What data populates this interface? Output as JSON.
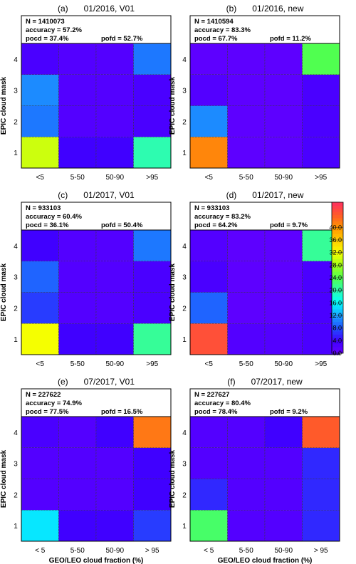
{
  "chart_data": [
    {
      "type": "heatmap",
      "panel_label": "(a)",
      "title": "01/2016, V01",
      "stats": {
        "n": "N = 1410073",
        "accuracy": "accuracy = 57.2%",
        "pocd": "pocd = 37.4%",
        "pofd": "pofd = 52.7%"
      },
      "x_categories": [
        "<5",
        "5-50",
        "50-90",
        ">95"
      ],
      "y_categories": [
        "1",
        "2",
        "3",
        "4"
      ],
      "values": [
        [
          30,
          4,
          4,
          20
        ],
        [
          10,
          2,
          2,
          3
        ],
        [
          11,
          2,
          2,
          3
        ],
        [
          3,
          2,
          2,
          10
        ]
      ],
      "ylabel": "EPIC cloud mask",
      "xlabel": ""
    },
    {
      "type": "heatmap",
      "panel_label": "(b)",
      "title": "01/2016, new",
      "stats": {
        "n": "N = 1410594",
        "accuracy": "accuracy = 83.3%",
        "pocd": "pocd = 67.7%",
        "pofd": "pofd = 11.2%"
      },
      "x_categories": [
        "<5",
        "5-50",
        "50-90",
        ">95"
      ],
      "y_categories": [
        "1",
        "2",
        "3",
        "4"
      ],
      "values": [
        [
          41,
          1,
          1,
          3
        ],
        [
          11,
          1,
          1,
          3
        ],
        [
          2,
          1,
          1,
          3
        ],
        [
          1,
          1,
          1,
          24
        ]
      ],
      "ylabel": "EPIC cloud mask",
      "xlabel": ""
    },
    {
      "type": "heatmap",
      "panel_label": "(c)",
      "title": "01/2017, V01",
      "stats": {
        "n": "N = 933103",
        "accuracy": "accuracy = 60.4%",
        "pocd": "pocd = 36.1%",
        "pofd": "pofd = 50.4%"
      },
      "x_categories": [
        "<5",
        "5-50",
        "50-90",
        ">95"
      ],
      "y_categories": [
        "1",
        "2",
        "3",
        "4"
      ],
      "values": [
        [
          32,
          4,
          4,
          21
        ],
        [
          7,
          2,
          2,
          3
        ],
        [
          9,
          2,
          2,
          3
        ],
        [
          4,
          2,
          2,
          10
        ]
      ],
      "ylabel": "EPIC cloud mask",
      "xlabel": ""
    },
    {
      "type": "heatmap",
      "panel_label": "(d)",
      "title": "01/2017, new",
      "stats": {
        "n": "N = 933103",
        "accuracy": "accuracy = 83.2%",
        "pocd": "pocd = 64.2%",
        "pofd": "pofd = 9.7%"
      },
      "x_categories": [
        "<5",
        "5-50",
        "50-90",
        ">95"
      ],
      "y_categories": [
        "1",
        "2",
        "3",
        "4"
      ],
      "values": [
        [
          45,
          2,
          2,
          3
        ],
        [
          9,
          1,
          1,
          3
        ],
        [
          3,
          1,
          1,
          3
        ],
        [
          2,
          1,
          1,
          21
        ]
      ],
      "ylabel": "EPIC cloud mask",
      "xlabel": ""
    },
    {
      "type": "heatmap",
      "panel_label": "(e)",
      "title": "07/2017, V01",
      "stats": {
        "n": "N = 227622",
        "accuracy": "accuracy = 74.9%",
        "pocd": "pocd = 77.5%",
        "pofd": "pofd = 16.5%"
      },
      "x_categories": [
        "< 5",
        "5-50",
        "50-90",
        "> 95"
      ],
      "y_categories": [
        "1",
        "2",
        "3",
        "4"
      ],
      "values": [
        [
          15,
          4,
          4,
          7
        ],
        [
          2,
          2,
          2,
          4
        ],
        [
          2,
          2,
          2,
          4
        ],
        [
          3,
          2,
          4,
          42
        ]
      ],
      "ylabel": "EPIC cloud mask",
      "xlabel": "GEO/LEO cloud fraction (%)"
    },
    {
      "type": "heatmap",
      "panel_label": "(f)",
      "title": "07/2017, new",
      "stats": {
        "n": "N = 227627",
        "accuracy": "accuracy = 80.4%",
        "pocd": "pocd = 78.4%",
        "pofd": "pofd = 9.2%"
      },
      "x_categories": [
        "< 5",
        "5-50",
        "50-90",
        "> 95"
      ],
      "y_categories": [
        "1",
        "2",
        "3",
        "4"
      ],
      "values": [
        [
          23,
          2,
          2,
          6
        ],
        [
          6,
          2,
          2,
          6
        ],
        [
          2,
          2,
          2,
          6
        ],
        [
          2,
          2,
          4,
          44
        ]
      ],
      "ylabel": "EPIC cloud mask",
      "xlabel": "GEO/LEO cloud fraction (%)"
    }
  ],
  "colorbar": {
    "ticks": [
      "0.0",
      "4.0",
      "8.0",
      "12.0",
      "16.0",
      "20.0",
      "24.0",
      "28.0",
      "32.0",
      "36.0",
      "40.0"
    ],
    "min": 0,
    "max": 48,
    "colors": [
      "#6600ff",
      "#4000ff",
      "#2050ff",
      "#1a9fff",
      "#00ffff",
      "#2dfcb0",
      "#50ff50",
      "#a2ff1a",
      "#f5ff00",
      "#ffcc00",
      "#ff9500",
      "#ff5a2a",
      "#ff3060"
    ]
  }
}
